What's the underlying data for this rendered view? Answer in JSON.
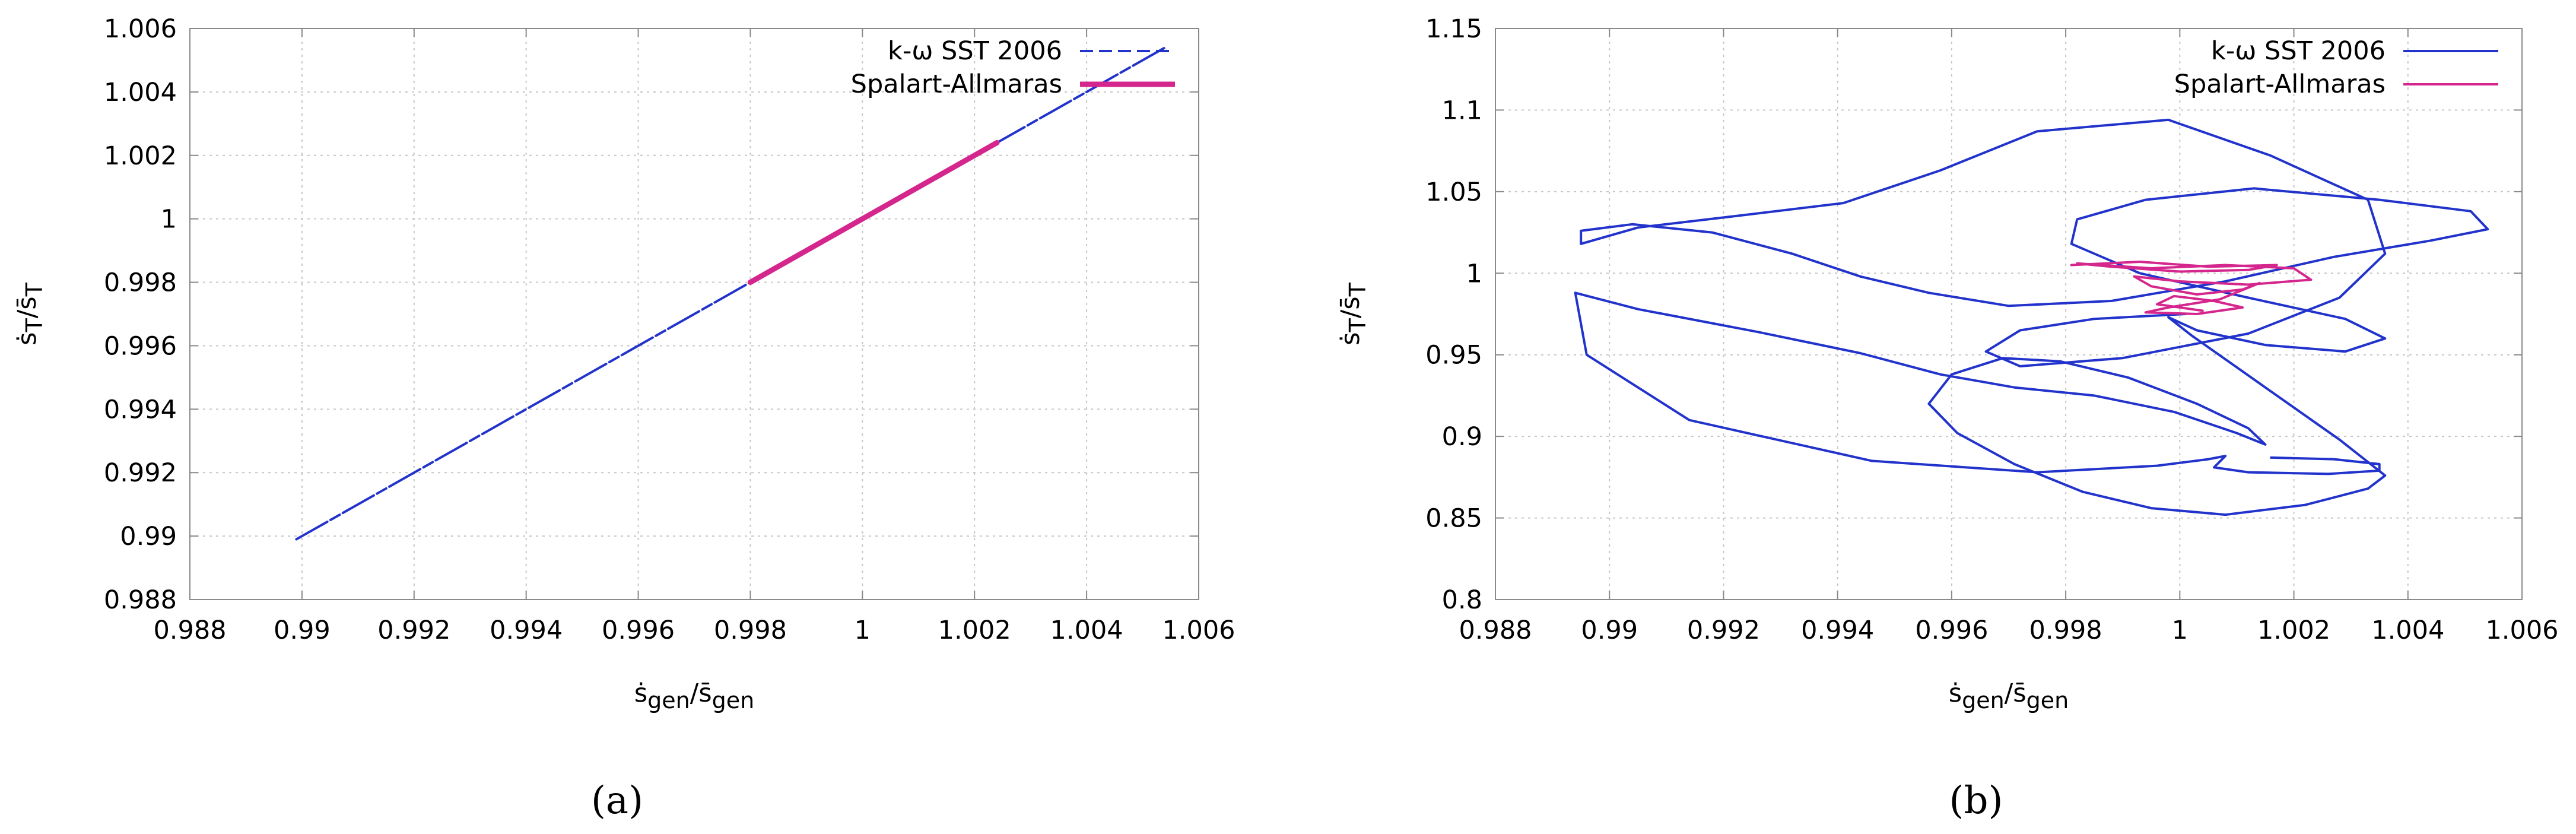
{
  "chart_data": [
    {
      "type": "line",
      "panel_label": "(a)",
      "xlabel": "ṡgen/s̄gen",
      "ylabel": "ṡT/s̄T",
      "xlim": [
        0.988,
        1.006
      ],
      "ylim": [
        0.988,
        1.006
      ],
      "x_ticks": [
        "0.988",
        "0.99",
        "0.992",
        "0.994",
        "0.996",
        "0.998",
        "1",
        "1.002",
        "1.004",
        "1.006"
      ],
      "y_ticks": [
        "0.988",
        "0.99",
        "0.992",
        "0.994",
        "0.996",
        "0.998",
        "1",
        "1.002",
        "1.004",
        "1.006"
      ],
      "grid": true,
      "legend_position": "top-right",
      "series": [
        {
          "name": "k-ω SST 2006",
          "color": "#2233cc",
          "style": "dashed",
          "x": [
            0.9899,
            1.0054
          ],
          "y": [
            0.9899,
            1.0054
          ]
        },
        {
          "name": "Spalart-Allmaras",
          "color": "#d4268c",
          "style": "solid-thick",
          "x": [
            0.998,
            1.0024
          ],
          "y": [
            0.998,
            1.0024
          ]
        }
      ]
    },
    {
      "type": "line",
      "panel_label": "(b)",
      "xlabel": "ṡgen/s̄gen",
      "ylabel": "ṡT/s̄T",
      "xlim": [
        0.988,
        1.006
      ],
      "ylim": [
        0.8,
        1.15
      ],
      "x_ticks": [
        "0.988",
        "0.99",
        "0.992",
        "0.994",
        "0.996",
        "0.998",
        "1",
        "1.002",
        "1.004",
        "1.006"
      ],
      "y_ticks": [
        "0.8",
        "0.85",
        "0.9",
        "0.95",
        "1",
        "1.05",
        "1.1",
        "1.15"
      ],
      "grid": true,
      "legend_position": "top-right",
      "series": [
        {
          "name": "k-ω SST 2006",
          "color": "#2233cc",
          "style": "solid",
          "x": [
            1.0001,
            0.9985,
            0.9972,
            0.9966,
            0.9972,
            0.999,
            1.0012,
            1.0028,
            1.0036,
            1.0033,
            1.0016,
            0.9998,
            0.9975,
            0.9958,
            0.9941,
            0.9922,
            0.9905,
            0.9895,
            0.9895,
            0.9904,
            0.9918,
            0.9932,
            0.9944,
            0.9956,
            0.997,
            0.9988,
            1.0008,
            1.0027,
            1.0044,
            1.0054,
            1.0051,
            1.0035,
            1.0013,
            0.9994,
            0.9982,
            0.9981,
            0.9993,
            1.0012,
            1.0029,
            1.0036,
            1.0029,
            1.0015,
            1.0003,
            0.9998,
            1.0002,
            1.0015,
            1.0028,
            1.0036,
            1.0033,
            1.0022,
            1.0008,
            0.9995,
            0.9983,
            0.9971,
            0.9961,
            0.9956,
            0.996,
            0.9969,
            0.9979,
            0.9991,
            1.0003,
            1.0012,
            1.0015,
            1.001,
            0.9999,
            0.9985,
            0.9971,
            0.9958,
            0.9944,
            0.9926,
            0.9905,
            0.9894,
            0.9896,
            0.9914,
            0.9946,
            0.9975,
            0.9996,
            1.0005,
            1.0008,
            1.0006,
            1.0012,
            1.0026,
            1.0035,
            1.0035,
            1.0027,
            1.0016
          ],
          "y": [
            0.975,
            0.972,
            0.965,
            0.952,
            0.943,
            0.948,
            0.963,
            0.985,
            1.012,
            1.045,
            1.072,
            1.094,
            1.087,
            1.063,
            1.043,
            1.035,
            1.028,
            1.018,
            1.026,
            1.03,
            1.025,
            1.012,
            0.998,
            0.988,
            0.98,
            0.983,
            0.995,
            1.01,
            1.02,
            1.027,
            1.038,
            1.045,
            1.052,
            1.045,
            1.033,
            1.018,
            1.0,
            0.985,
            0.972,
            0.96,
            0.952,
            0.956,
            0.965,
            0.973,
            0.962,
            0.93,
            0.898,
            0.876,
            0.868,
            0.858,
            0.852,
            0.856,
            0.866,
            0.883,
            0.902,
            0.92,
            0.938,
            0.948,
            0.946,
            0.936,
            0.92,
            0.905,
            0.895,
            0.902,
            0.915,
            0.925,
            0.93,
            0.938,
            0.951,
            0.964,
            0.978,
            0.988,
            0.95,
            0.91,
            0.885,
            0.878,
            0.882,
            0.886,
            0.888,
            0.881,
            0.878,
            0.877,
            0.879,
            0.883,
            0.886,
            0.887
          ]
        },
        {
          "name": "Spalart-Allmaras",
          "color": "#d4268c",
          "style": "solid",
          "x": [
            0.9981,
            0.9993,
            1.0005,
            1.0017,
            1.0012,
            1.0,
            0.9988,
            0.9982,
            0.9995,
            1.0008,
            1.002,
            1.0023,
            1.0012,
            1.0,
            0.9992,
            0.9995,
            1.0003,
            1.0011,
            1.0014,
            1.0007,
            0.9998,
            0.9994,
            1.0003,
            1.0011,
            1.0006,
            0.9999,
            0.9996,
            1.0004
          ],
          "y": [
            1.005,
            1.007,
            1.004,
            1.005,
            1.002,
            1.001,
            1.004,
            1.006,
            1.003,
            1.005,
            1.003,
            0.996,
            0.993,
            0.995,
            0.998,
            0.992,
            0.987,
            0.99,
            0.994,
            0.984,
            0.979,
            0.976,
            0.975,
            0.979,
            0.983,
            0.986,
            0.981,
            0.977
          ]
        }
      ]
    }
  ]
}
